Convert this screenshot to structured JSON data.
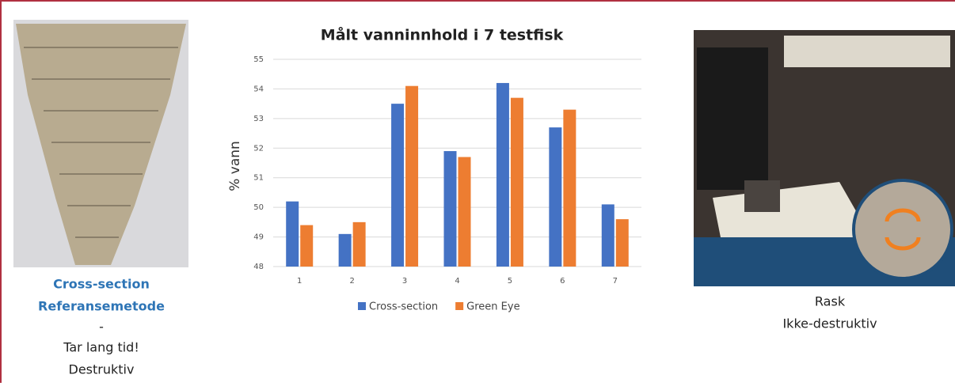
{
  "chart_data": {
    "type": "bar",
    "title": "Målt vanninnhold i 7 testfisk",
    "y_label": "% vann",
    "categories": [
      "1",
      "2",
      "3",
      "4",
      "5",
      "6",
      "7"
    ],
    "series": [
      {
        "name": "Cross-section",
        "color": "#4472c4",
        "values": [
          50.2,
          49.1,
          53.5,
          51.9,
          54.2,
          52.7,
          50.1
        ]
      },
      {
        "name": "Green Eye",
        "color": "#ed7d31",
        "values": [
          49.4,
          49.5,
          54.1,
          51.7,
          53.7,
          53.3,
          49.6
        ]
      }
    ],
    "ylim": [
      48,
      55
    ],
    "yticks": [
      48,
      49,
      50,
      51,
      52,
      53,
      54,
      55
    ],
    "grid": true
  },
  "left_caption": [
    "Cross-section",
    "Referansemetode",
    "-",
    "Tar lang tid!",
    "Destruktiv"
  ],
  "right_caption": [
    "Rask",
    "Ikke-destruktiv"
  ]
}
